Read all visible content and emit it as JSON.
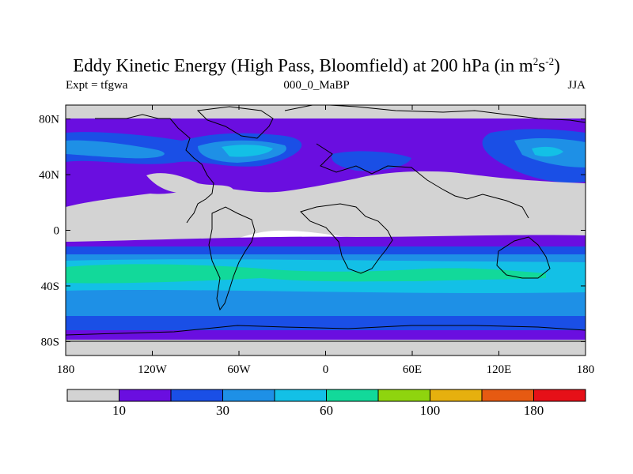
{
  "title": {
    "main": "Eddy Kinetic Energy (High Pass, Bloomfield) at 200 hPa (in m",
    "sup1": "2",
    "mid": "s",
    "sup2": "-2",
    "close": ")"
  },
  "subtitle": {
    "left": "Expt = tfgwa",
    "center": "000_0_MaBP",
    "right": "JJA"
  },
  "map": {
    "lon_ticks": [
      "180",
      "120W",
      "60W",
      "0",
      "60E",
      "120E",
      "180"
    ],
    "lat_ticks": [
      "80N",
      "40N",
      "0",
      "40S",
      "80S"
    ]
  },
  "colorbar": {
    "colors": [
      "#d3d3d3",
      "#6a0ee0",
      "#1a4fe6",
      "#1e90e6",
      "#13c0e6",
      "#12d99a",
      "#8fd40e",
      "#e6b00e",
      "#e65a12",
      "#e61018"
    ],
    "labels": [
      "10",
      "30",
      "60",
      "100",
      "180"
    ]
  }
}
